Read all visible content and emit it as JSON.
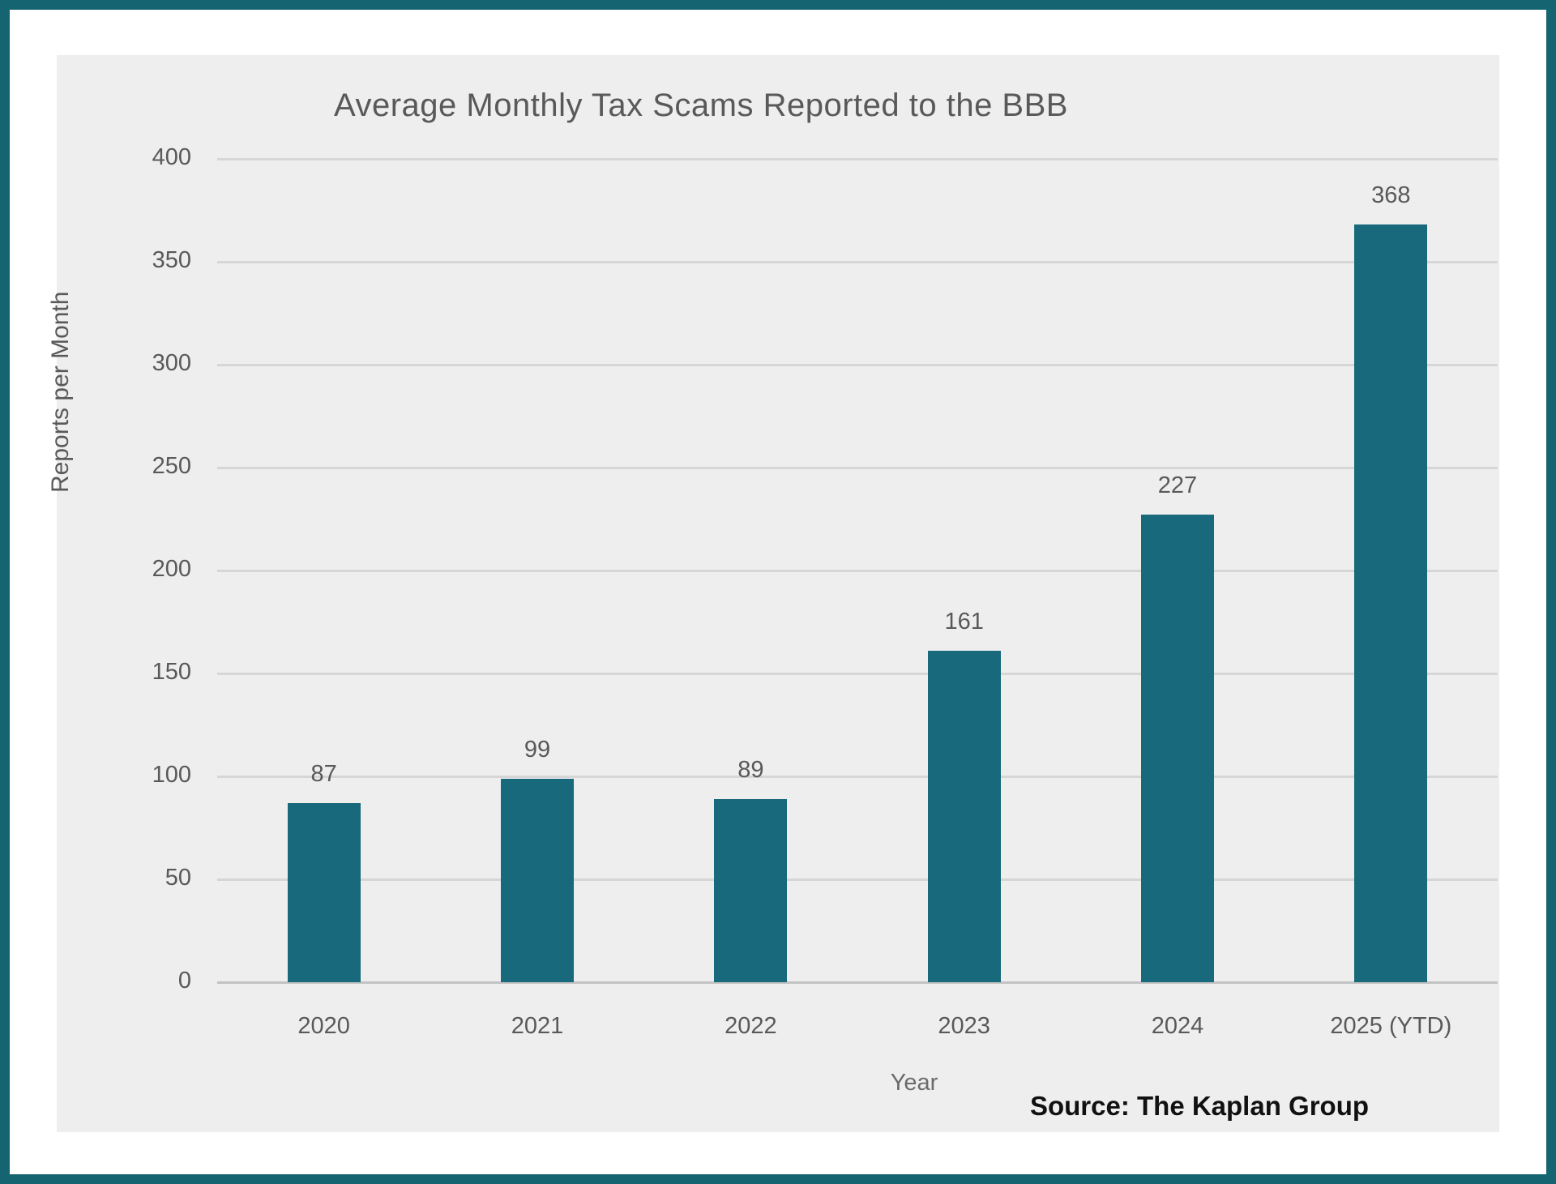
{
  "frame": {
    "border_color": "#156472",
    "page_background": "#ffffff",
    "panel_background": "#eeeeee"
  },
  "chart_data": {
    "type": "bar",
    "title": "Average Monthly Tax Scams Reported to the BBB",
    "categories": [
      "2020",
      "2021",
      "2022",
      "2023",
      "2024",
      "2025 (YTD)"
    ],
    "values": [
      87,
      99,
      89,
      161,
      227,
      368
    ],
    "xlabel": "Year",
    "ylabel": "Reports per Month",
    "ylim": [
      0,
      400
    ],
    "ytick_step": 50,
    "ytick_labels": [
      "0",
      "50",
      "100",
      "150",
      "200",
      "250",
      "300",
      "350",
      "400"
    ],
    "grid": true,
    "legend": false,
    "bar_color": "#17697b",
    "label_color": "#595959",
    "source_note": "Source: The Kaplan Group"
  }
}
